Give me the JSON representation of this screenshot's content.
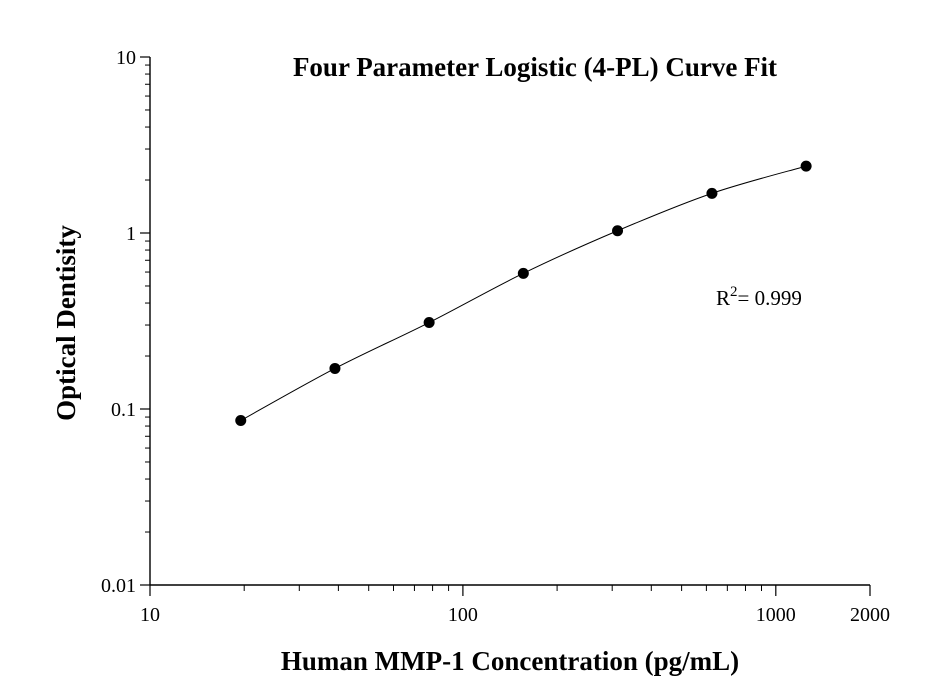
{
  "chart_data": {
    "type": "scatter",
    "title": "Four Parameter Logistic (4-PL) Curve Fit",
    "xlabel": "Human MMP-1 Concentration (pg/mL)",
    "ylabel": "Optical Dentisity",
    "x_scale": "log",
    "y_scale": "log",
    "xlim": [
      10,
      2000
    ],
    "ylim": [
      0.01,
      10
    ],
    "x_ticks": [
      {
        "value": 10,
        "label": "10"
      },
      {
        "value": 100,
        "label": "100"
      },
      {
        "value": 1000,
        "label": "1000"
      },
      {
        "value": 2000,
        "label": "2000"
      }
    ],
    "y_ticks": [
      {
        "value": 0.01,
        "label": "0.01"
      },
      {
        "value": 0.1,
        "label": "0.1"
      },
      {
        "value": 1,
        "label": "1"
      },
      {
        "value": 10,
        "label": "10"
      }
    ],
    "grid": false,
    "series": [
      {
        "x": [
          19.5,
          39,
          78,
          156,
          312,
          625,
          1250
        ],
        "y": [
          0.086,
          0.17,
          0.31,
          0.59,
          1.03,
          1.68,
          2.4
        ]
      }
    ],
    "fit_curve": true,
    "annotation": {
      "base": "R",
      "sup": "2",
      "rest": "= 0.999"
    },
    "colors": {
      "marker": "#000000",
      "line": "#000000",
      "axis": "#000000"
    }
  }
}
